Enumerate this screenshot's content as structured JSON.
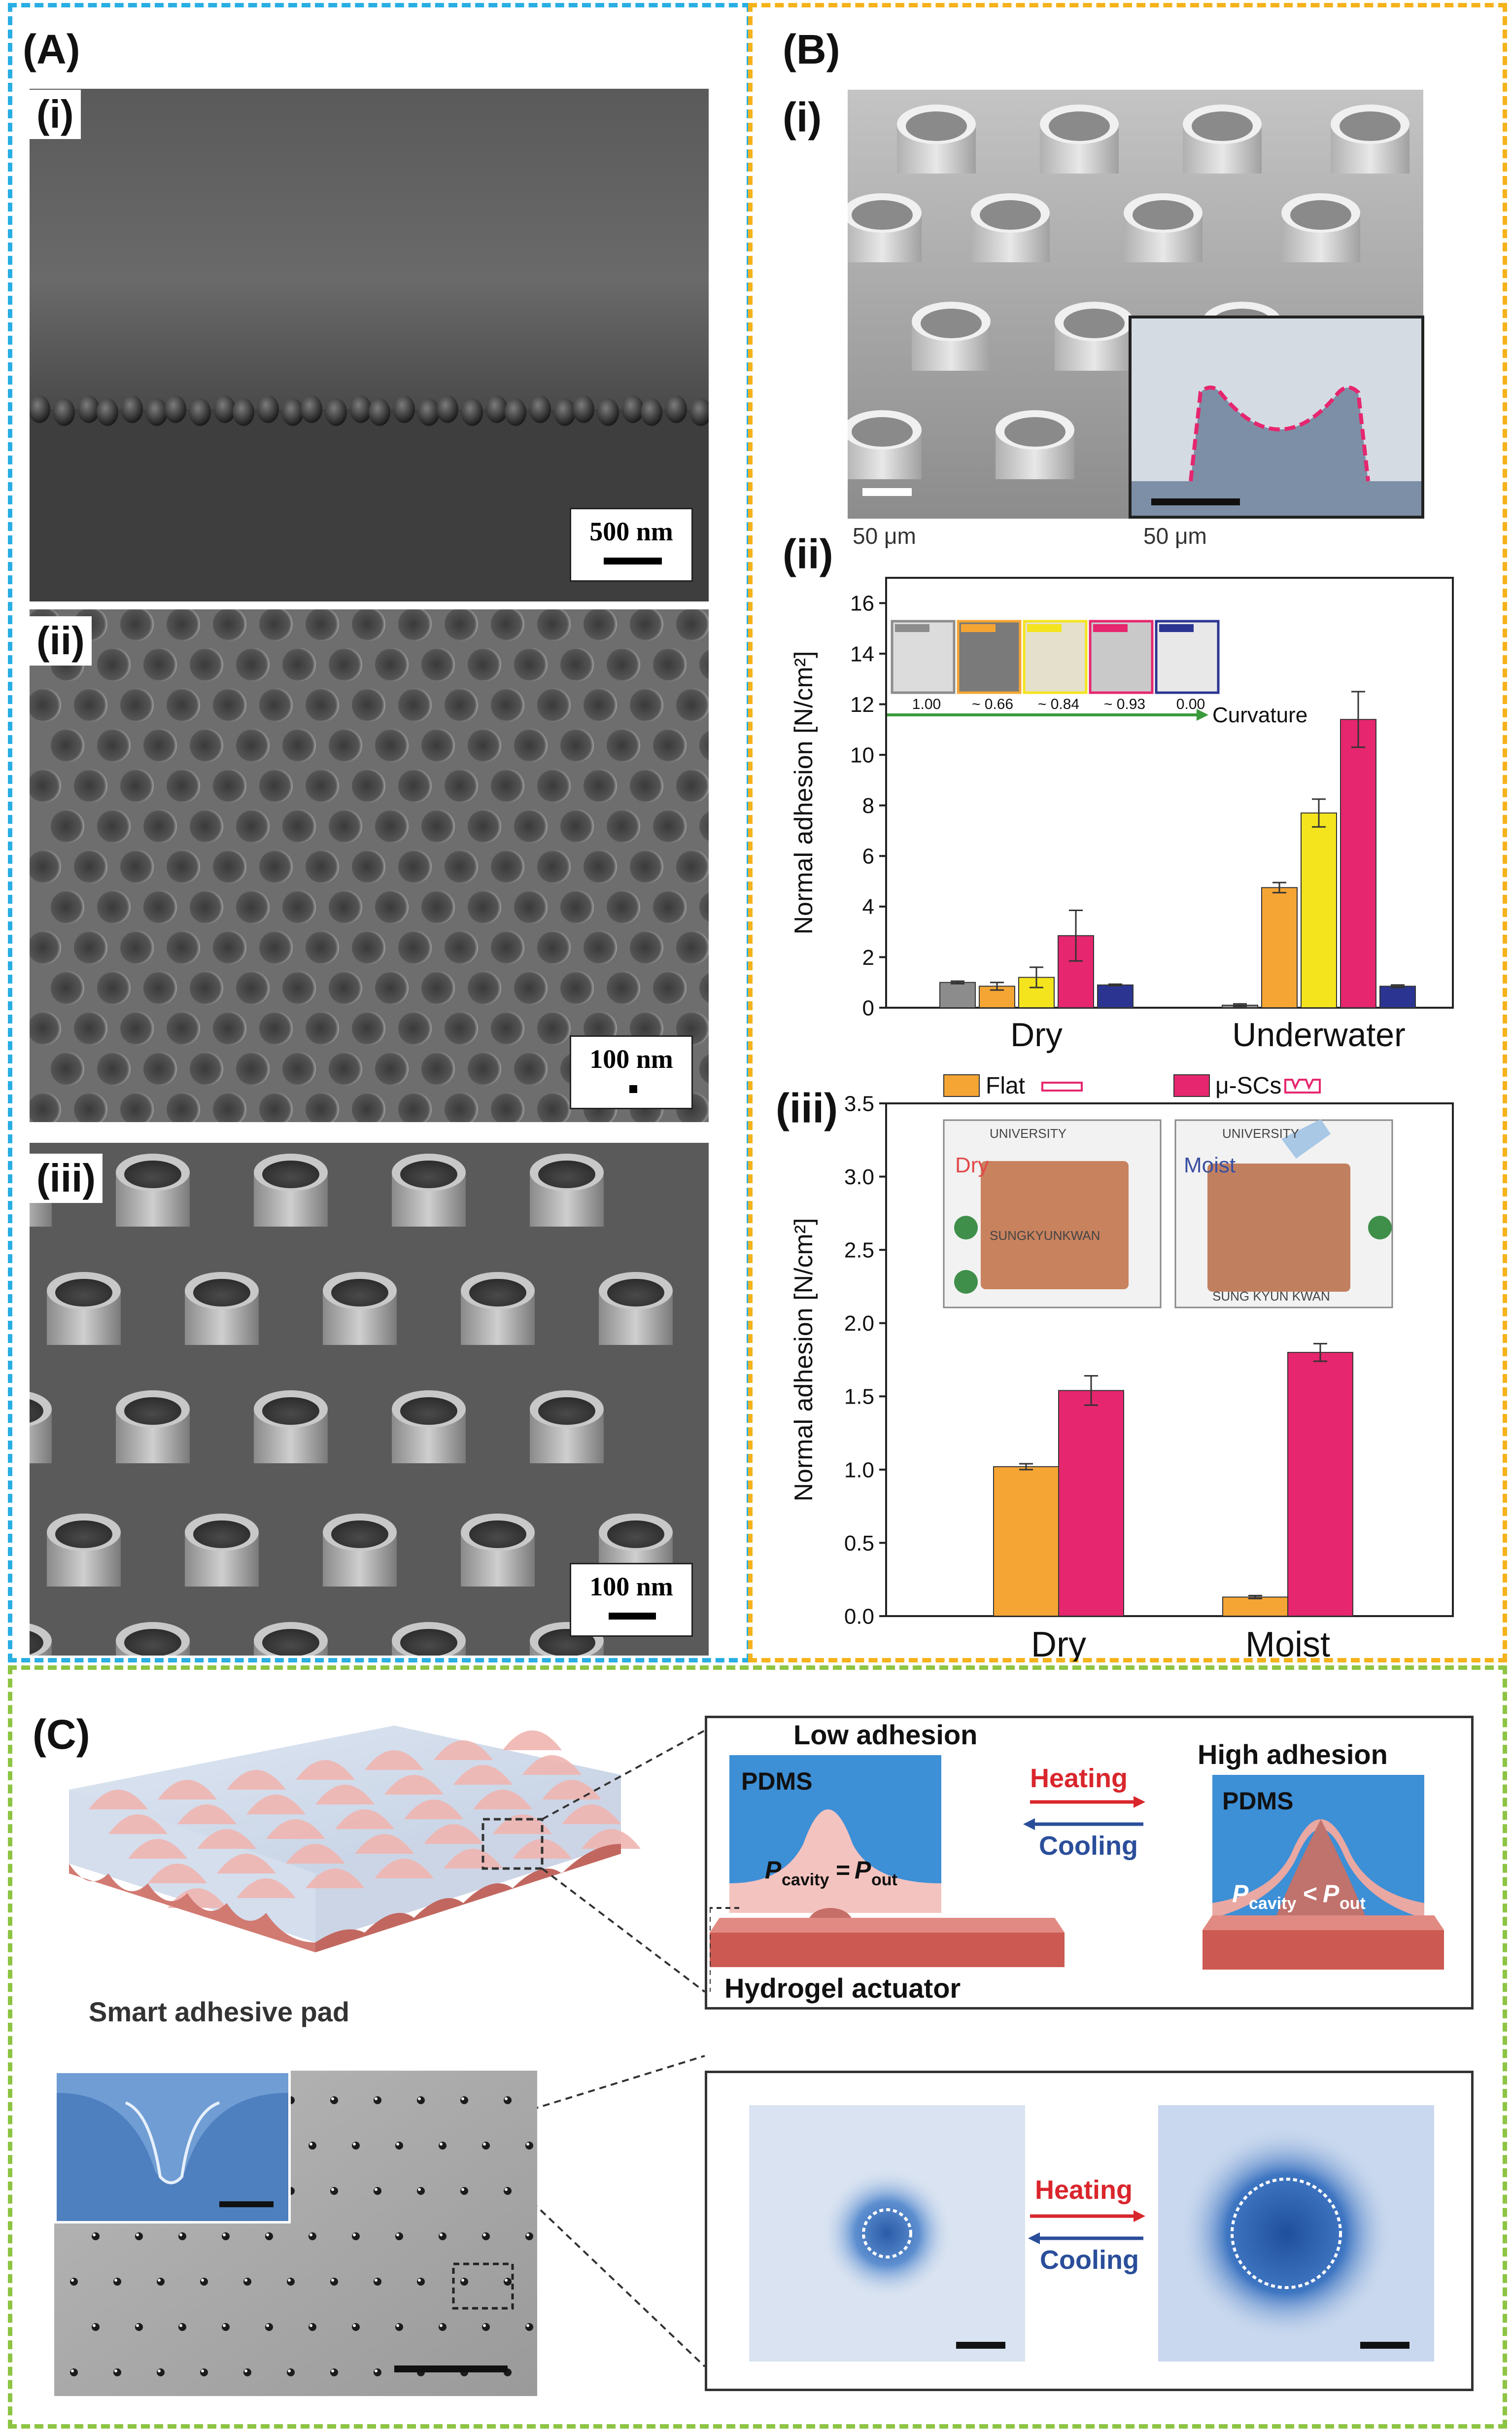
{
  "panels": {
    "A": {
      "label": "(A)",
      "i": {
        "label": "(i)",
        "scale": "500 nm"
      },
      "ii": {
        "label": "(ii)",
        "scale": "100 nm"
      },
      "iii": {
        "label": "(iii)",
        "scale": "100 nm"
      }
    },
    "B": {
      "label": "(B)",
      "i": {
        "label": "(i)",
        "scale_main": "50 μm",
        "scale_inset": "50 μm"
      },
      "ii": {
        "label": "(ii)",
        "curvature_label": "Curvature",
        "curvature_values": [
          "1.00",
          "~ 0.66",
          "~ 0.84",
          "~ 0.93",
          "0.00"
        ]
      },
      "iii": {
        "label": "(iii)",
        "photo_left": "Dry",
        "photo_right": "Moist",
        "photo_text": [
          "UNIVERSITY",
          "SUNGKYUNKWAN",
          "UNIVERSITY",
          "SUNG KYUN KWAN"
        ]
      }
    },
    "C": {
      "label": "(C)",
      "pad_label": "Smart adhesive pad",
      "hydrogel_label": "Hydrogel actuator",
      "low_adhesion": "Low adhesion",
      "high_adhesion": "High adhesion",
      "pdms_left": "PDMS",
      "pdms_right": "PDMS",
      "heating": "Heating",
      "cooling": "Cooling",
      "heating2": "Heating",
      "cooling2": "Cooling",
      "eq_left_P": "P",
      "eq_left_sub1": "cavity",
      "eq_left_op": "=",
      "eq_left_sub2": "out",
      "eq_right_op": "<"
    }
  },
  "colors": {
    "frame_A": "#29aee3",
    "frame_B": "#f5b21a",
    "frame_C": "#8dc443",
    "flat": "#f5a534",
    "musc": "#e6266e",
    "gray": "#8c8c8c",
    "yellow": "#f4e41d",
    "navy": "#2b3591",
    "pdms_blue": "#3d8fd6",
    "heating_red": "#d9262c",
    "cooling_blue": "#2a4e9a"
  },
  "chart_data": [
    {
      "type": "bar",
      "panel": "B(ii)",
      "ylabel": "Normal adhesion [N/cm²]",
      "ylim": [
        0,
        17
      ],
      "yticks": [
        0,
        2,
        4,
        6,
        8,
        10,
        12,
        14,
        16
      ],
      "categories": [
        "Dry",
        "Underwater"
      ],
      "series": [
        {
          "values": [
            1.0,
            0.1
          ],
          "errors": [
            0.05,
            0.05
          ],
          "color": "#8c8c8c"
        },
        {
          "values": [
            0.85,
            4.75
          ],
          "errors": [
            0.15,
            0.2
          ],
          "color": "#f5a534"
        },
        {
          "values": [
            1.2,
            7.7
          ],
          "errors": [
            0.4,
            0.55
          ],
          "color": "#f4e41d"
        },
        {
          "values": [
            2.85,
            11.4
          ],
          "errors": [
            1.0,
            1.1
          ],
          "color": "#e6266e"
        },
        {
          "values": [
            0.9,
            0.85
          ],
          "errors": [
            0.03,
            0.05
          ],
          "color": "#2b3591"
        }
      ]
    },
    {
      "type": "bar",
      "panel": "B(iii)",
      "ylabel": "Normal adhesion [N/cm²]",
      "ylim": [
        0,
        3.5
      ],
      "yticks": [
        0.0,
        0.5,
        1.0,
        1.5,
        2.0,
        2.5,
        3.0,
        3.5
      ],
      "categories": [
        "Dry",
        "Moist"
      ],
      "series": [
        {
          "name": "Flat",
          "values": [
            1.02,
            0.13
          ],
          "errors": [
            0.02,
            0.01
          ],
          "color": "#f5a534"
        },
        {
          "name": "μ-SCs",
          "values": [
            1.54,
            1.8
          ],
          "errors": [
            0.1,
            0.06
          ],
          "color": "#e6266e"
        }
      ]
    }
  ]
}
